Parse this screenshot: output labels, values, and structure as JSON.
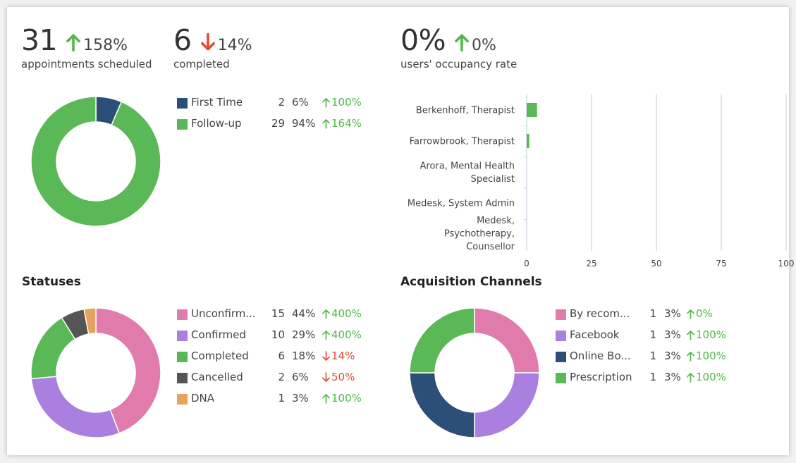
{
  "colors": {
    "up": "#52b848",
    "down": "#e34a33"
  },
  "kpis": {
    "scheduled": {
      "value": "31",
      "trend": "up",
      "change": "158%",
      "label": "appointments scheduled"
    },
    "completed": {
      "value": "6",
      "trend": "down",
      "change": "14%",
      "label": "completed"
    },
    "occupancy": {
      "value": "0%",
      "trend": "up",
      "change": "0%",
      "label": "users' occupancy rate"
    }
  },
  "appointment_types": [
    {
      "name": "First Time",
      "count": "2",
      "share": "6%",
      "trend": "up",
      "change": "100%",
      "color": "#2c4f77"
    },
    {
      "name": "Follow-up",
      "count": "29",
      "share": "94%",
      "trend": "up",
      "change": "164%",
      "color": "#5ab856"
    }
  ],
  "statuses": {
    "title": "Statuses",
    "items": [
      {
        "name": "Unconfirm...",
        "count": "15",
        "share": "44%",
        "trend": "up",
        "change": "400%",
        "color": "#e07bac"
      },
      {
        "name": "Confirmed",
        "count": "10",
        "share": "29%",
        "trend": "up",
        "change": "400%",
        "color": "#aa7fdf"
      },
      {
        "name": "Completed",
        "count": "6",
        "share": "18%",
        "trend": "down",
        "change": "14%",
        "color": "#5ab856"
      },
      {
        "name": "Cancelled",
        "count": "2",
        "share": "6%",
        "trend": "down",
        "change": "50%",
        "color": "#555555"
      },
      {
        "name": "DNA",
        "count": "1",
        "share": "3%",
        "trend": "up",
        "change": "100%",
        "color": "#e7a25b"
      }
    ]
  },
  "acquisition": {
    "title": "Acquisition Channels",
    "items": [
      {
        "name": "By recom...",
        "count": "1",
        "share": "3%",
        "trend": "up",
        "change": "0%",
        "color": "#e07bac"
      },
      {
        "name": "Facebook",
        "count": "1",
        "share": "3%",
        "trend": "up",
        "change": "100%",
        "color": "#aa7fdf"
      },
      {
        "name": "Online Bo...",
        "count": "1",
        "share": "3%",
        "trend": "up",
        "change": "100%",
        "color": "#2c4f77"
      },
      {
        "name": "Prescription",
        "count": "1",
        "share": "3%",
        "trend": "up",
        "change": "100%",
        "color": "#5ab856"
      }
    ]
  },
  "chart_data": [
    {
      "type": "pie",
      "variant": "donut",
      "labels": [
        "First Time",
        "Follow-up"
      ],
      "values": [
        2,
        29
      ],
      "colors": [
        "#2c4f77",
        "#5ab856"
      ]
    },
    {
      "type": "bar",
      "orientation": "horizontal",
      "categories": [
        [
          "Berkenhoff, Therapist"
        ],
        [
          "Farrowbrook, Therapist"
        ],
        [
          "Arora, Mental Health",
          "Specialist"
        ],
        [
          "Medesk, System Admin"
        ],
        [
          "Medesk,",
          "Psychotherapy,",
          "Counsellor"
        ]
      ],
      "values": [
        4,
        1,
        0,
        0,
        0
      ],
      "xlim": [
        0,
        100
      ],
      "xticks": [
        "0",
        "25",
        "50",
        "75",
        "100"
      ],
      "grid": true,
      "color": "#5ab856"
    },
    {
      "type": "pie",
      "variant": "donut",
      "labels": [
        "Unconfirm...",
        "Confirmed",
        "Completed",
        "Cancelled",
        "DNA"
      ],
      "values": [
        15,
        10,
        6,
        2,
        1
      ],
      "colors": [
        "#e07bac",
        "#aa7fdf",
        "#5ab856",
        "#555555",
        "#e7a25b"
      ]
    },
    {
      "type": "pie",
      "variant": "donut",
      "labels": [
        "By recom...",
        "Facebook",
        "Online Bo...",
        "Prescription"
      ],
      "values": [
        1,
        1,
        1,
        1
      ],
      "colors": [
        "#e07bac",
        "#aa7fdf",
        "#2c4f77",
        "#5ab856"
      ]
    }
  ]
}
